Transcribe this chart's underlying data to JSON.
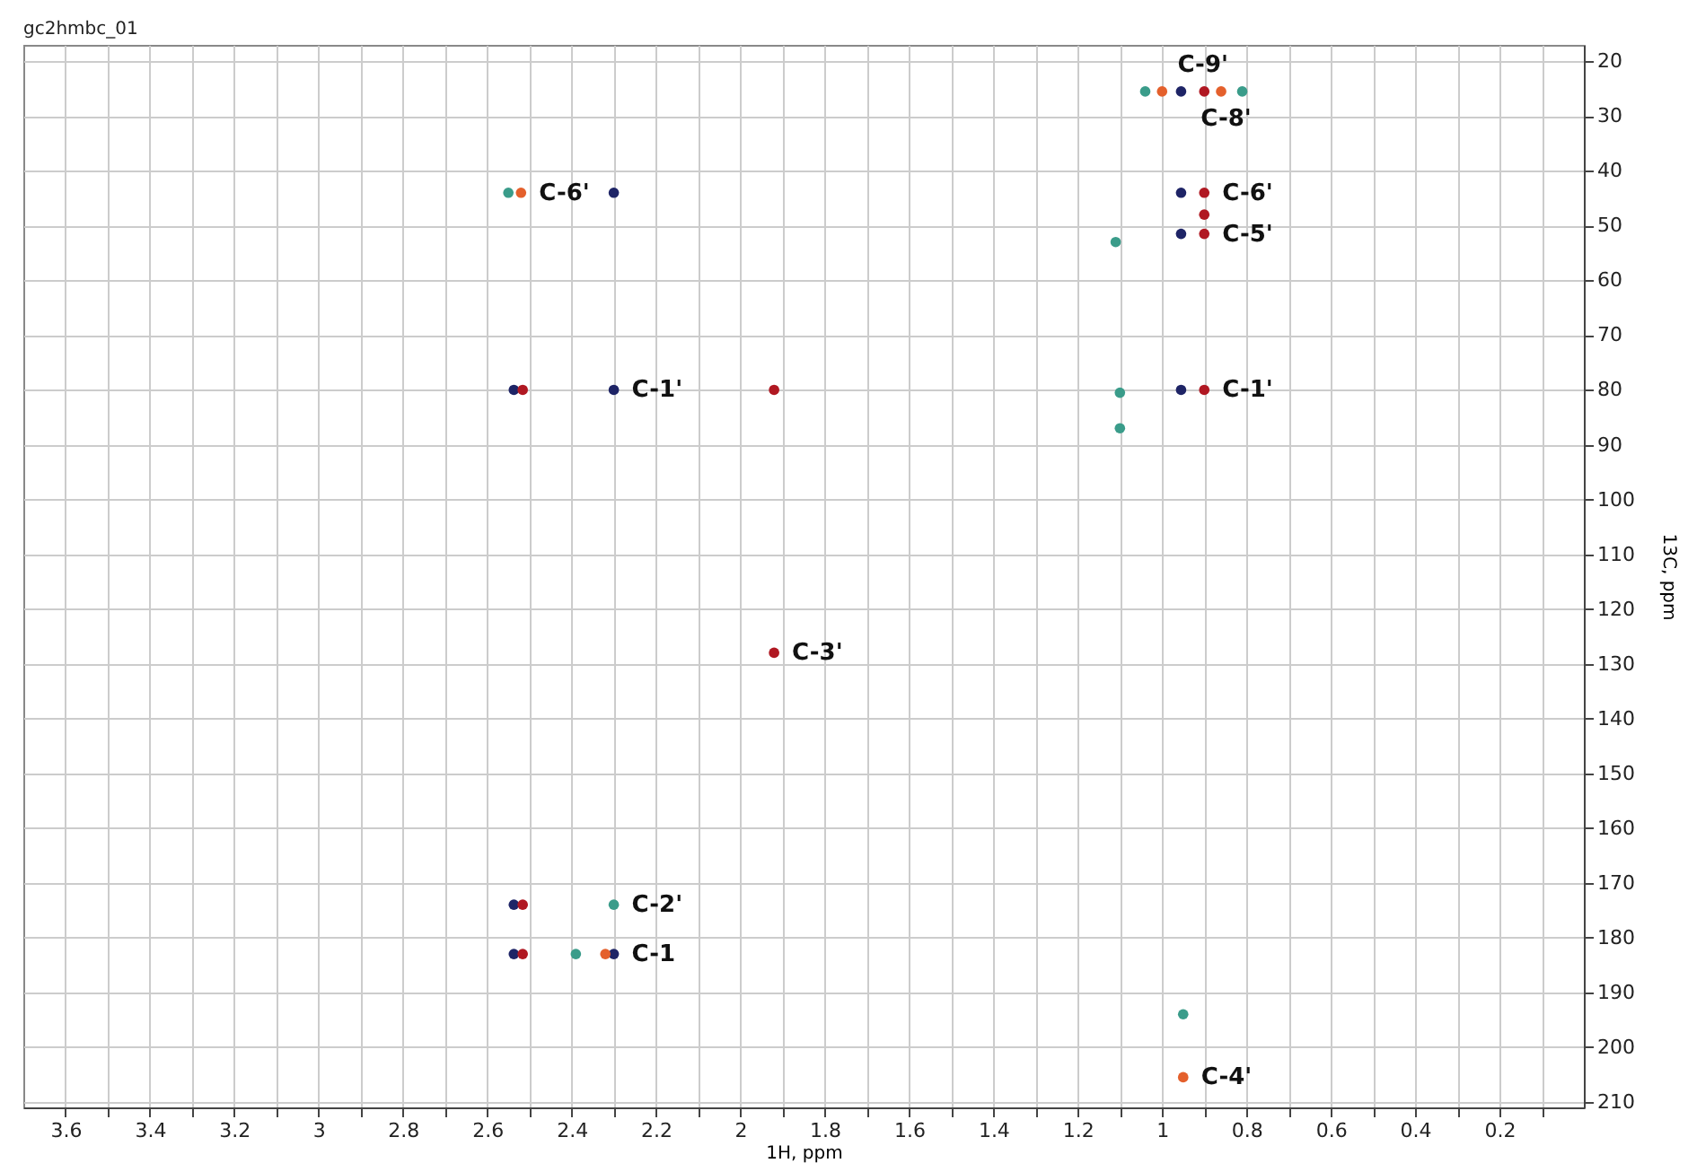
{
  "chart_data": {
    "type": "scatter",
    "title": "gc2hmbc_01",
    "xlabel": "1H, ppm",
    "ylabel": "13C, ppm",
    "xlim": [
      3.7,
      0.0
    ],
    "ylim": [
      211,
      17
    ],
    "xticks": [
      3.6,
      {
        "value": 3.5,
        "label": null
      },
      3.4,
      {
        "value": 3.3,
        "label": null
      },
      3.2,
      {
        "value": 3.1,
        "label": null
      },
      3.0,
      {
        "value": 2.9,
        "label": null
      },
      2.8,
      {
        "value": 2.7,
        "label": null
      },
      2.6,
      {
        "value": 2.5,
        "label": null
      },
      2.4,
      {
        "value": 2.3,
        "label": null
      },
      2.2,
      {
        "value": 2.1,
        "label": null
      },
      2.0,
      {
        "value": 1.9,
        "label": null
      },
      1.8,
      {
        "value": 1.7,
        "label": null
      },
      1.6,
      {
        "value": 1.5,
        "label": null
      },
      1.4,
      {
        "value": 1.3,
        "label": null
      },
      1.2,
      {
        "value": 1.1,
        "label": null
      },
      1.0,
      {
        "value": 0.9,
        "label": null
      },
      0.8,
      {
        "value": 0.7,
        "label": null
      },
      0.6,
      {
        "value": 0.5,
        "label": null
      },
      0.4,
      {
        "value": 0.3,
        "label": null
      },
      0.2,
      {
        "value": 0.1,
        "label": null
      }
    ],
    "yticks": [
      20,
      30,
      40,
      50,
      60,
      70,
      80,
      90,
      100,
      110,
      120,
      130,
      140,
      150,
      160,
      170,
      180,
      190,
      200,
      210
    ],
    "grid": true,
    "series": [
      {
        "color": "#1e2466",
        "x": [
          0.955,
          0.955,
          0.955,
          0.955,
          2.537,
          2.3,
          2.537,
          2.537,
          2.3,
          2.3
        ],
        "values": [
          25.5,
          44,
          51.5,
          80,
          80,
          80,
          174,
          183,
          183,
          44
        ]
      },
      {
        "color": "#b01822",
        "x": [
          0.9,
          0.9,
          0.9,
          0.9,
          2.516,
          1.92,
          1.92,
          2.516,
          2.516,
          0.9
        ],
        "values": [
          25.5,
          44,
          51.5,
          80,
          80,
          80,
          128,
          174,
          183,
          48
        ]
      },
      {
        "color": "#3a9c8a",
        "x": [
          1.04,
          0.81,
          1.11,
          1.1,
          1.1,
          2.3,
          2.39,
          0.95,
          2.55
        ],
        "values": [
          25.5,
          25.5,
          53,
          80.5,
          87,
          174,
          183,
          194,
          44
        ]
      },
      {
        "color": "#e4602c",
        "x": [
          1.0,
          0.86,
          2.32,
          0.95,
          2.52
        ],
        "values": [
          25.5,
          25.5,
          183,
          205.5,
          44
        ]
      }
    ],
    "annotations": [
      {
        "text": "C-9'",
        "x": 0.955,
        "y": 25.5
      },
      {
        "text": "C-8'",
        "x": 0.9,
        "y": 25.5
      },
      {
        "text": "C-6'",
        "x": 2.52,
        "y": 44
      },
      {
        "text": "C-6'",
        "x": 0.9,
        "y": 44
      },
      {
        "text": "C-5'",
        "x": 0.9,
        "y": 51.5
      },
      {
        "text": "C-1'",
        "x": 2.3,
        "y": 80
      },
      {
        "text": "C-1'",
        "x": 0.9,
        "y": 80
      },
      {
        "text": "C-3'",
        "x": 1.92,
        "y": 128
      },
      {
        "text": "C-2'",
        "x": 2.3,
        "y": 174
      },
      {
        "text": "C-1",
        "x": 2.3,
        "y": 183
      },
      {
        "text": "C-4'",
        "x": 0.95,
        "y": 205.5
      }
    ]
  }
}
